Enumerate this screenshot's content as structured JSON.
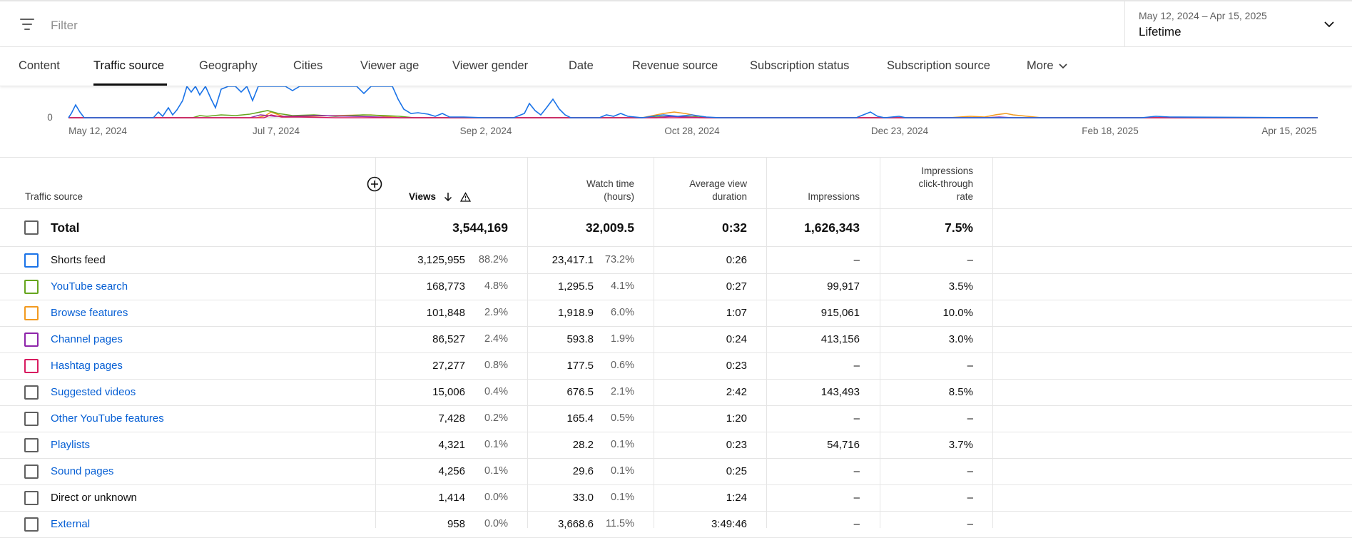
{
  "filter": {
    "placeholder": "Filter"
  },
  "date": {
    "range": "May 12, 2024 – Apr 15, 2025",
    "preset": "Lifetime"
  },
  "tabs": [
    {
      "label": "Content"
    },
    {
      "label": "Traffic source"
    },
    {
      "label": "Geography"
    },
    {
      "label": "Cities"
    },
    {
      "label": "Viewer age"
    },
    {
      "label": "Viewer gender"
    },
    {
      "label": "Date"
    },
    {
      "label": "Revenue source"
    },
    {
      "label": "Subscription status"
    },
    {
      "label": "Subscription source"
    },
    {
      "label": "More"
    }
  ],
  "active_tab": "Traffic source",
  "chart": {
    "y_zero_label": "0",
    "x_labels": [
      "May 12, 2024",
      "Jul 7, 2024",
      "Sep 2, 2024",
      "Oct 28, 2024",
      "Dec 23, 2024",
      "Feb 18, 2025",
      "Apr 15, 2025"
    ],
    "series_colors": [
      "#1a73e8",
      "#66a61e",
      "#f29a1f",
      "#8e24aa",
      "#d81b60"
    ]
  },
  "table": {
    "headers": {
      "source": "Traffic source",
      "views": "Views",
      "watch_time": [
        "Watch time",
        "(hours)"
      ],
      "avg_duration": [
        "Average view",
        "duration"
      ],
      "impressions": "Impressions",
      "ctr": [
        "Impressions",
        "click-through",
        "rate"
      ]
    },
    "total": {
      "label": "Total",
      "views": "3,544,169",
      "watch": "32,009.5",
      "avg": "0:32",
      "impressions": "1,626,343",
      "ctr": "7.5%"
    },
    "rows": [
      {
        "label": "Shorts feed",
        "link": false,
        "color": "#1a73e8",
        "views": "3,125,955",
        "views_pct": "88.2%",
        "watch": "23,417.1",
        "watch_pct": "73.2%",
        "avg": "0:26",
        "impressions": "–",
        "ctr": "–"
      },
      {
        "label": "YouTube search",
        "link": true,
        "color": "#66a61e",
        "views": "168,773",
        "views_pct": "4.8%",
        "watch": "1,295.5",
        "watch_pct": "4.1%",
        "avg": "0:27",
        "impressions": "99,917",
        "ctr": "3.5%"
      },
      {
        "label": "Browse features",
        "link": true,
        "color": "#f29a1f",
        "views": "101,848",
        "views_pct": "2.9%",
        "watch": "1,918.9",
        "watch_pct": "6.0%",
        "avg": "1:07",
        "impressions": "915,061",
        "ctr": "10.0%"
      },
      {
        "label": "Channel pages",
        "link": true,
        "color": "#8e24aa",
        "views": "86,527",
        "views_pct": "2.4%",
        "watch": "593.8",
        "watch_pct": "1.9%",
        "avg": "0:24",
        "impressions": "413,156",
        "ctr": "3.0%"
      },
      {
        "label": "Hashtag pages",
        "link": true,
        "color": "#d81b60",
        "views": "27,277",
        "views_pct": "0.8%",
        "watch": "177.5",
        "watch_pct": "0.6%",
        "avg": "0:23",
        "impressions": "–",
        "ctr": "–"
      },
      {
        "label": "Suggested videos",
        "link": true,
        "color": "#606060",
        "views": "15,006",
        "views_pct": "0.4%",
        "watch": "676.5",
        "watch_pct": "2.1%",
        "avg": "2:42",
        "impressions": "143,493",
        "ctr": "8.5%"
      },
      {
        "label": "Other YouTube features",
        "link": true,
        "color": "#606060",
        "views": "7,428",
        "views_pct": "0.2%",
        "watch": "165.4",
        "watch_pct": "0.5%",
        "avg": "1:20",
        "impressions": "–",
        "ctr": "–"
      },
      {
        "label": "Playlists",
        "link": true,
        "color": "#606060",
        "views": "4,321",
        "views_pct": "0.1%",
        "watch": "28.2",
        "watch_pct": "0.1%",
        "avg": "0:23",
        "impressions": "54,716",
        "ctr": "3.7%"
      },
      {
        "label": "Sound pages",
        "link": true,
        "color": "#606060",
        "views": "4,256",
        "views_pct": "0.1%",
        "watch": "29.6",
        "watch_pct": "0.1%",
        "avg": "0:25",
        "impressions": "–",
        "ctr": "–"
      },
      {
        "label": "Direct or unknown",
        "link": false,
        "color": "#606060",
        "views": "1,414",
        "views_pct": "0.0%",
        "watch": "33.0",
        "watch_pct": "0.1%",
        "avg": "1:24",
        "impressions": "–",
        "ctr": "–"
      },
      {
        "label": "External",
        "link": true,
        "color": "#606060",
        "views": "958",
        "views_pct": "0.0%",
        "watch": "3,668.6",
        "watch_pct": "11.5%",
        "avg": "3:49:46",
        "impressions": "–",
        "ctr": "–"
      }
    ]
  }
}
